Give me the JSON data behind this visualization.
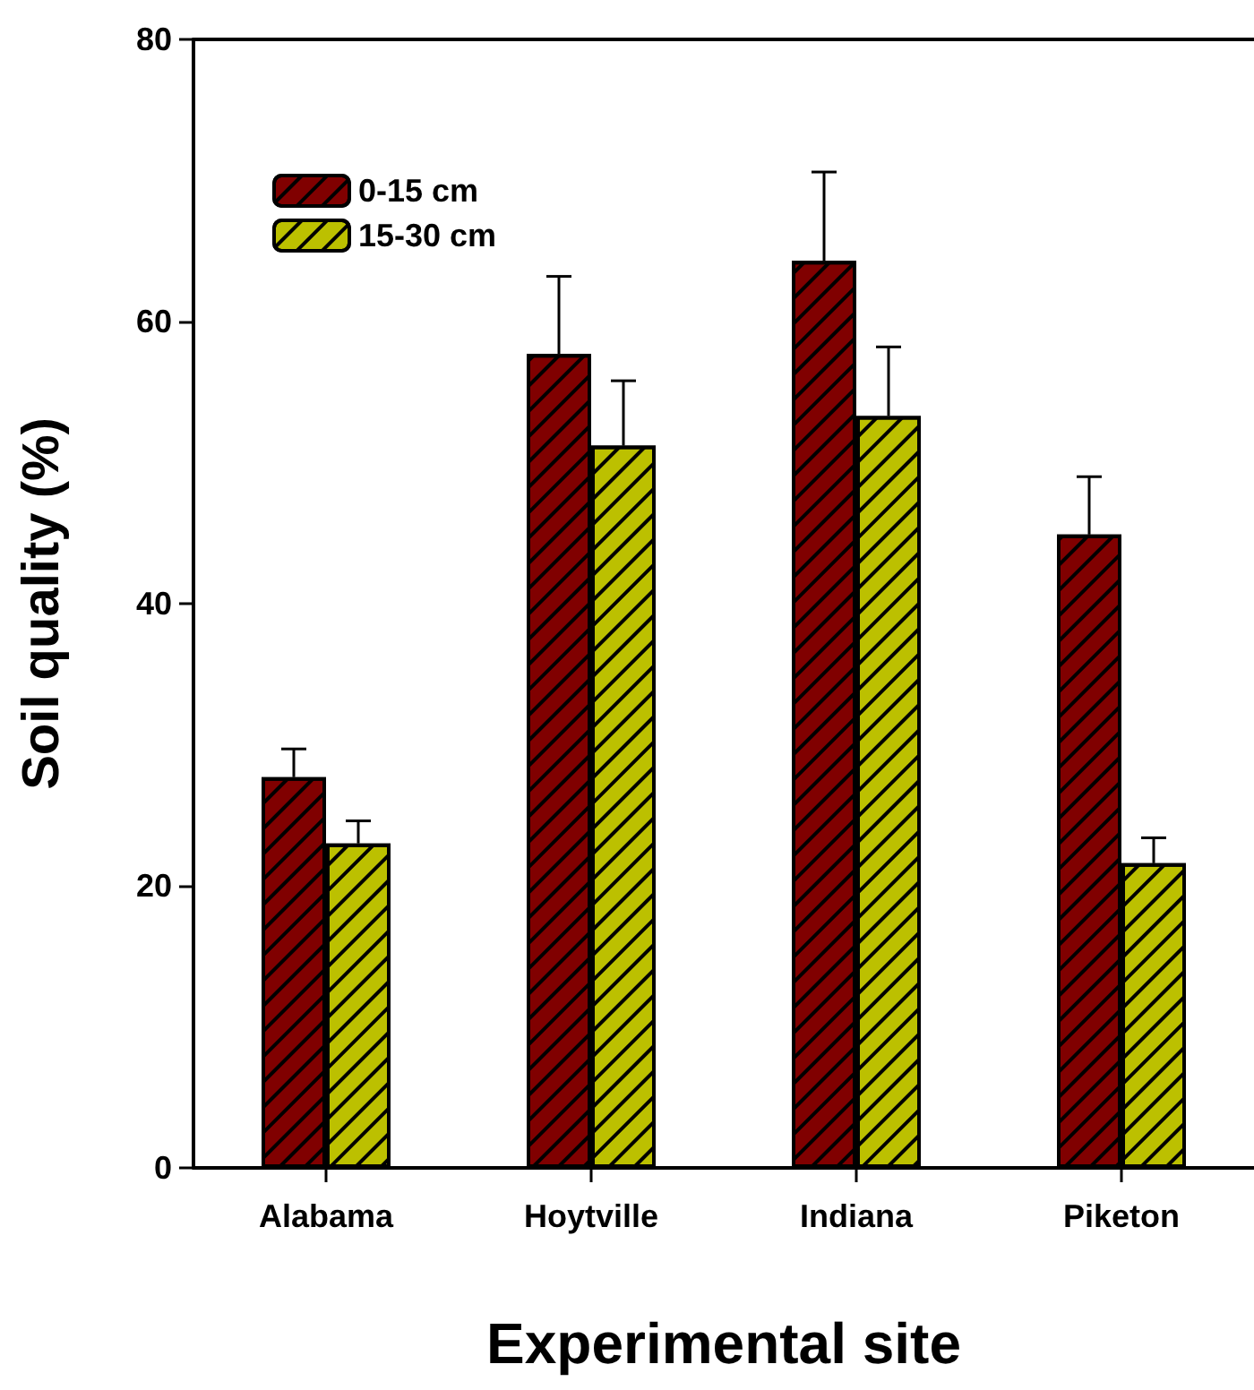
{
  "chart_data": {
    "type": "bar",
    "xlabel": "Experimental site",
    "ylabel": "Soil quality (%)",
    "categories": [
      "Alabama",
      "Hoytville",
      "Indiana",
      "Piketon"
    ],
    "series": [
      {
        "name": "0-15 cm",
        "color": "#800000",
        "values": [
          27.7,
          57.7,
          64.3,
          44.9
        ],
        "errors": [
          [
            27.7,
            29.7
          ],
          [
            57.7,
            63.2
          ],
          [
            64.3,
            70.6
          ],
          [
            44.9,
            49.0
          ]
        ]
      },
      {
        "name": "15-30 cm",
        "color": "#bcc000",
        "values": [
          23.0,
          51.2,
          53.3,
          21.6
        ],
        "errors": [
          [
            23.0,
            24.6
          ],
          [
            51.2,
            55.8
          ],
          [
            53.3,
            58.2
          ],
          [
            21.6,
            23.4
          ]
        ]
      }
    ],
    "ylim": [
      0,
      80
    ],
    "yticks": [
      0,
      20,
      40,
      60,
      80
    ],
    "grid": false,
    "legend": "top left"
  }
}
